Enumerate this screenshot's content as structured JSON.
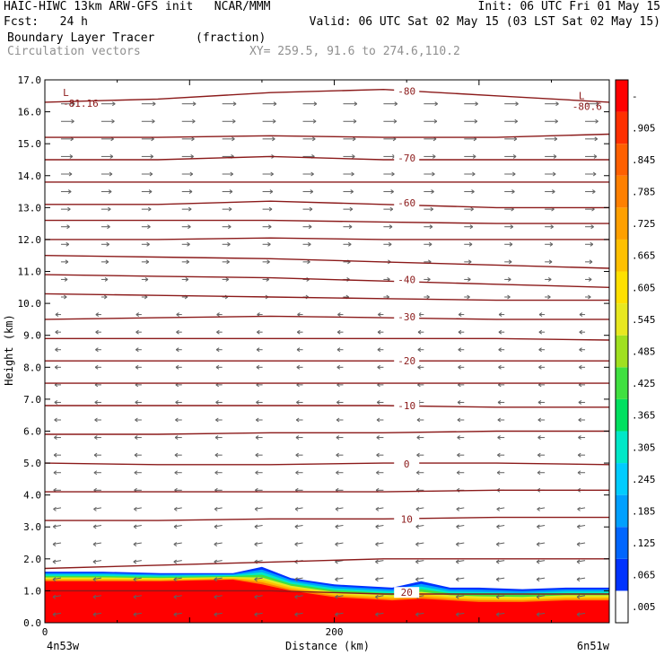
{
  "header": {
    "line1_left": "HAIC-HIWC 13km ARW-GFS init   NCAR/MMM",
    "line1_right": "Init: 06 UTC Fri 01 May 15",
    "line2_left": "Fcst:   24 h",
    "line2_right": "Valid: 06 UTC Sat 02 May 15 (03 LST Sat 02 May 15)",
    "field_name": "Boundary Layer Tracer",
    "field_units": "(fraction)",
    "vector_label": "Circulation vectors",
    "xy_label": "XY= 259.5, 91.6 to 274.6,110.2"
  },
  "colors": {
    "contour": "#8b1a1a",
    "vector": "#606060",
    "header_gray": "#909090"
  },
  "chart_data": {
    "type": "heatmap",
    "ylabel": "Height (km)",
    "xlabel": "Distance (km)",
    "ylim": [
      0,
      17
    ],
    "xlim": [
      0,
      390
    ],
    "y_ticks": [
      "0.0",
      "1.0",
      "2.0",
      "3.0",
      "4.0",
      "5.0",
      "6.0",
      "7.0",
      "8.0",
      "9.0",
      "10.0",
      "11.0",
      "12.0",
      "13.0",
      "14.0",
      "15.0",
      "16.0",
      "17.0"
    ],
    "x_ticks": [
      {
        "value": 0,
        "label": "0"
      },
      {
        "value": 200,
        "label": "200"
      }
    ],
    "x_endpoints": {
      "left": "4n53w",
      "right": "6n51w"
    },
    "colorbar": {
      "labels": [
        ".005",
        ".065",
        ".125",
        ".185",
        ".245",
        ".305",
        ".365",
        ".425",
        ".485",
        ".545",
        ".605",
        ".665",
        ".725",
        ".785",
        ".845",
        ".905",
        "-"
      ],
      "colors": [
        "#ffffff",
        "#0033ff",
        "#0066ff",
        "#00a0ff",
        "#00ccff",
        "#00e8c8",
        "#00e060",
        "#40e040",
        "#a0e020",
        "#e8e820",
        "#ffe000",
        "#ffc000",
        "#ffa000",
        "#ff8000",
        "#ff6000",
        "#ff3000",
        "#ff0000"
      ]
    },
    "contours": [
      {
        "label": "-80",
        "y": [
          16.3,
          16.4,
          16.6,
          16.7,
          16.5,
          16.3
        ]
      },
      {
        "label": "",
        "y": [
          15.2,
          15.2,
          15.25,
          15.2,
          15.2,
          15.3
        ]
      },
      {
        "label": "-70",
        "y": [
          14.5,
          14.5,
          14.6,
          14.5,
          14.5,
          14.5
        ]
      },
      {
        "label": "",
        "y": [
          13.8,
          13.8,
          13.8,
          13.8,
          13.8,
          13.8
        ]
      },
      {
        "label": "-60",
        "y": [
          13.1,
          13.1,
          13.2,
          13.1,
          13.0,
          13.0
        ]
      },
      {
        "label": "",
        "y": [
          12.6,
          12.6,
          12.6,
          12.55,
          12.5,
          12.5
        ]
      },
      {
        "label": "",
        "y": [
          12.0,
          12.0,
          12.05,
          12.0,
          12.0,
          12.0
        ]
      },
      {
        "label": "",
        "y": [
          11.5,
          11.45,
          11.4,
          11.3,
          11.2,
          11.1
        ]
      },
      {
        "label": "-40",
        "y": [
          10.9,
          10.85,
          10.8,
          10.7,
          10.6,
          10.5
        ]
      },
      {
        "label": "",
        "y": [
          10.3,
          10.25,
          10.2,
          10.15,
          10.1,
          10.1
        ]
      },
      {
        "label": "-30",
        "y": [
          9.5,
          9.55,
          9.6,
          9.55,
          9.5,
          9.5
        ]
      },
      {
        "label": "",
        "y": [
          8.9,
          8.9,
          8.9,
          8.9,
          8.9,
          8.85
        ]
      },
      {
        "label": "-20",
        "y": [
          8.2,
          8.2,
          8.2,
          8.2,
          8.2,
          8.2
        ]
      },
      {
        "label": "",
        "y": [
          7.5,
          7.5,
          7.5,
          7.5,
          7.5,
          7.5
        ]
      },
      {
        "label": "-10",
        "y": [
          6.8,
          6.8,
          6.8,
          6.8,
          6.75,
          6.75
        ]
      },
      {
        "label": "",
        "y": [
          5.9,
          5.9,
          5.95,
          5.95,
          6.0,
          6.0
        ]
      },
      {
        "label": "0",
        "y": [
          5.0,
          4.95,
          4.95,
          5.0,
          5.0,
          4.95
        ]
      },
      {
        "label": "",
        "y": [
          4.1,
          4.1,
          4.1,
          4.1,
          4.15,
          4.15
        ]
      },
      {
        "label": "10",
        "y": [
          3.2,
          3.2,
          3.25,
          3.25,
          3.3,
          3.3
        ]
      },
      {
        "label": "",
        "y": [
          1.7,
          1.8,
          1.9,
          2.0,
          2.0,
          2.0
        ]
      },
      {
        "label": "20",
        "y": [
          1.0,
          1.0,
          1.0,
          0.9,
          0.9,
          0.9
        ]
      }
    ],
    "extrema": [
      {
        "mark": "L",
        "value": "-81.16",
        "x": 5,
        "y": 16.5
      },
      {
        "mark": "L",
        "value": "-80.6",
        "x": 385,
        "y": 16.4
      }
    ],
    "tracer_layer": {
      "x": [
        0,
        40,
        80,
        130,
        150,
        170,
        200,
        240,
        260,
        280,
        300,
        330,
        360,
        390
      ],
      "top": [
        1.6,
        1.6,
        1.55,
        1.55,
        1.75,
        1.4,
        1.2,
        1.1,
        1.3,
        1.1,
        1.1,
        1.05,
        1.1,
        1.1
      ],
      "red_top": [
        1.3,
        1.3,
        1.3,
        1.35,
        1.2,
        1.0,
        0.8,
        0.7,
        0.75,
        0.7,
        0.65,
        0.65,
        0.7,
        0.7
      ]
    },
    "vectors": {
      "upper_direction": "right",
      "lower_direction": "left",
      "switch_height_km": 9.8
    }
  }
}
